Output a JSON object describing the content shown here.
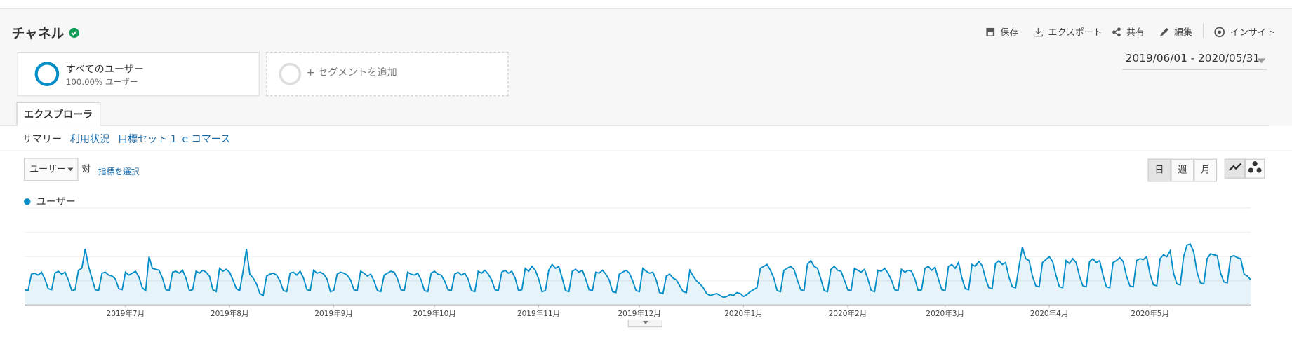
{
  "header": {
    "title": "チャネル",
    "actions": [
      "保存",
      "エクスポート",
      "共有",
      "編集",
      "インサイト"
    ]
  },
  "segments": {
    "all_users": "すべてのユーザー",
    "all_users_share": "100.00% ユーザー",
    "add_segment": "+ セグメントを追加"
  },
  "date_range": "2019/06/01 - 2020/05/31",
  "tab": "エクスプローラ",
  "subtabs": [
    "サマリー",
    "利用状況",
    "目標セット 1",
    "e コマース"
  ],
  "controls": {
    "metric": "ユーザー",
    "versus": "対",
    "select_metric": "指標を選択",
    "periods": [
      "日",
      "週",
      "月"
    ]
  },
  "chart_data": {
    "type": "line",
    "grid": true,
    "series": [
      {
        "name": "ユーザー",
        "color": "#058dc7",
        "values": [
          16,
          15,
          32,
          33,
          31,
          34,
          27,
          17,
          16,
          33,
          35,
          32,
          34,
          26,
          15,
          16,
          36,
          38,
          58,
          40,
          28,
          16,
          15,
          33,
          34,
          31,
          30,
          27,
          17,
          16,
          34,
          31,
          33,
          35,
          29,
          18,
          15,
          50,
          38,
          37,
          36,
          28,
          16,
          15,
          34,
          35,
          33,
          36,
          28,
          15,
          16,
          35,
          33,
          36,
          34,
          30,
          16,
          14,
          38,
          35,
          37,
          34,
          26,
          17,
          15,
          35,
          58,
          32,
          28,
          22,
          12,
          10,
          30,
          32,
          33,
          31,
          25,
          15,
          14,
          33,
          34,
          31,
          35,
          28,
          16,
          15,
          36,
          33,
          34,
          32,
          27,
          14,
          15,
          32,
          34,
          33,
          31,
          26,
          16,
          15,
          35,
          33,
          30,
          32,
          25,
          15,
          14,
          31,
          33,
          35,
          34,
          27,
          16,
          15,
          34,
          32,
          31,
          33,
          26,
          15,
          14,
          33,
          35,
          32,
          31,
          25,
          16,
          15,
          32,
          34,
          31,
          33,
          27,
          15,
          14,
          35,
          33,
          36,
          32,
          26,
          16,
          15,
          34,
          36,
          33,
          35,
          28,
          15,
          16,
          38,
          35,
          40,
          36,
          27,
          14,
          15,
          36,
          42,
          38,
          40,
          28,
          15,
          14,
          35,
          37,
          34,
          36,
          27,
          16,
          15,
          34,
          33,
          36,
          32,
          26,
          14,
          13,
          32,
          34,
          36,
          33,
          25,
          15,
          14,
          38,
          35,
          33,
          34,
          26,
          13,
          12,
          30,
          32,
          28,
          26,
          20,
          14,
          13,
          36,
          30,
          25,
          22,
          18,
          12,
          10,
          11,
          12,
          10,
          8,
          9,
          11,
          10,
          13,
          12,
          9,
          11,
          14,
          16,
          18,
          38,
          40,
          42,
          36,
          28,
          15,
          14,
          36,
          38,
          40,
          37,
          26,
          16,
          15,
          42,
          46,
          40,
          38,
          27,
          15,
          14,
          37,
          40,
          36,
          35,
          26,
          16,
          15,
          38,
          36,
          34,
          37,
          27,
          15,
          14,
          36,
          35,
          38,
          33,
          26,
          16,
          15,
          37,
          34,
          36,
          35,
          27,
          15,
          16,
          38,
          40,
          36,
          39,
          27,
          16,
          15,
          40,
          42,
          38,
          44,
          28,
          17,
          16,
          42,
          40,
          45,
          41,
          28,
          18,
          17,
          43,
          46,
          42,
          44,
          29,
          19,
          18,
          40,
          60,
          48,
          46,
          30,
          20,
          19,
          44,
          47,
          50,
          45,
          31,
          19,
          18,
          46,
          43,
          48,
          44,
          30,
          20,
          19,
          45,
          48,
          44,
          46,
          31,
          19,
          18,
          44,
          46,
          49,
          45,
          30,
          20,
          19,
          46,
          48,
          47,
          50,
          32,
          21,
          20,
          48,
          52,
          50,
          56,
          33,
          22,
          21,
          50,
          62,
          63,
          55,
          34,
          23,
          22,
          48,
          53,
          52,
          51,
          33,
          24,
          23,
          50,
          51,
          49,
          48,
          32,
          30,
          26
        ]
      }
    ],
    "xlim": [
      0,
      365
    ],
    "xticks": [
      {
        "value": 30,
        "label": "2019年7月"
      },
      {
        "value": 61,
        "label": "2019年8月"
      },
      {
        "value": 92,
        "label": "2019年9月"
      },
      {
        "value": 122,
        "label": "2019年10月"
      },
      {
        "value": 153,
        "label": "2019年11月"
      },
      {
        "value": 183,
        "label": "2019年12月"
      },
      {
        "value": 214,
        "label": "2020年1月"
      },
      {
        "value": 245,
        "label": "2020年2月"
      },
      {
        "value": 274,
        "label": "2020年3月"
      },
      {
        "value": 305,
        "label": "2020年4月"
      },
      {
        "value": 335,
        "label": "2020年5月"
      }
    ],
    "ylim": [
      0,
      100
    ],
    "yticks": [
      0,
      25,
      50,
      75,
      100
    ]
  }
}
